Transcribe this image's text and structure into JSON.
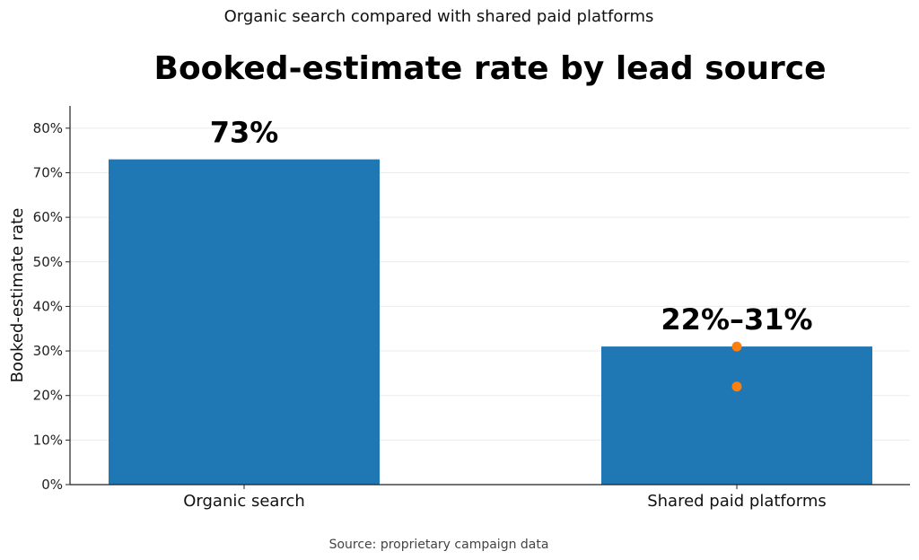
{
  "chart_data": {
    "type": "bar",
    "subtitle": "Organic search compared with shared paid platforms",
    "title": "Booked-estimate rate by lead source",
    "ylabel": "Booked-estimate rate",
    "xlabel": "",
    "categories": [
      "Organic search",
      "Shared paid platforms"
    ],
    "values": [
      73,
      31
    ],
    "range_low": [
      null,
      22
    ],
    "range_high": [
      null,
      31
    ],
    "data_labels": [
      "73%",
      "22%–31%"
    ],
    "ylim": [
      0,
      85
    ],
    "yticks": [
      0,
      10,
      20,
      30,
      40,
      50,
      60,
      70,
      80
    ],
    "ytick_labels": [
      "0%",
      "10%",
      "20%",
      "30%",
      "40%",
      "50%",
      "60%",
      "70%",
      "80%"
    ],
    "grid": "horizontal",
    "source": "Source: proprietary campaign data",
    "colors": {
      "bar": "#1f77b4",
      "marker": "#ff7f0e",
      "grid": "#ebebeb",
      "axis": "#222222"
    }
  }
}
